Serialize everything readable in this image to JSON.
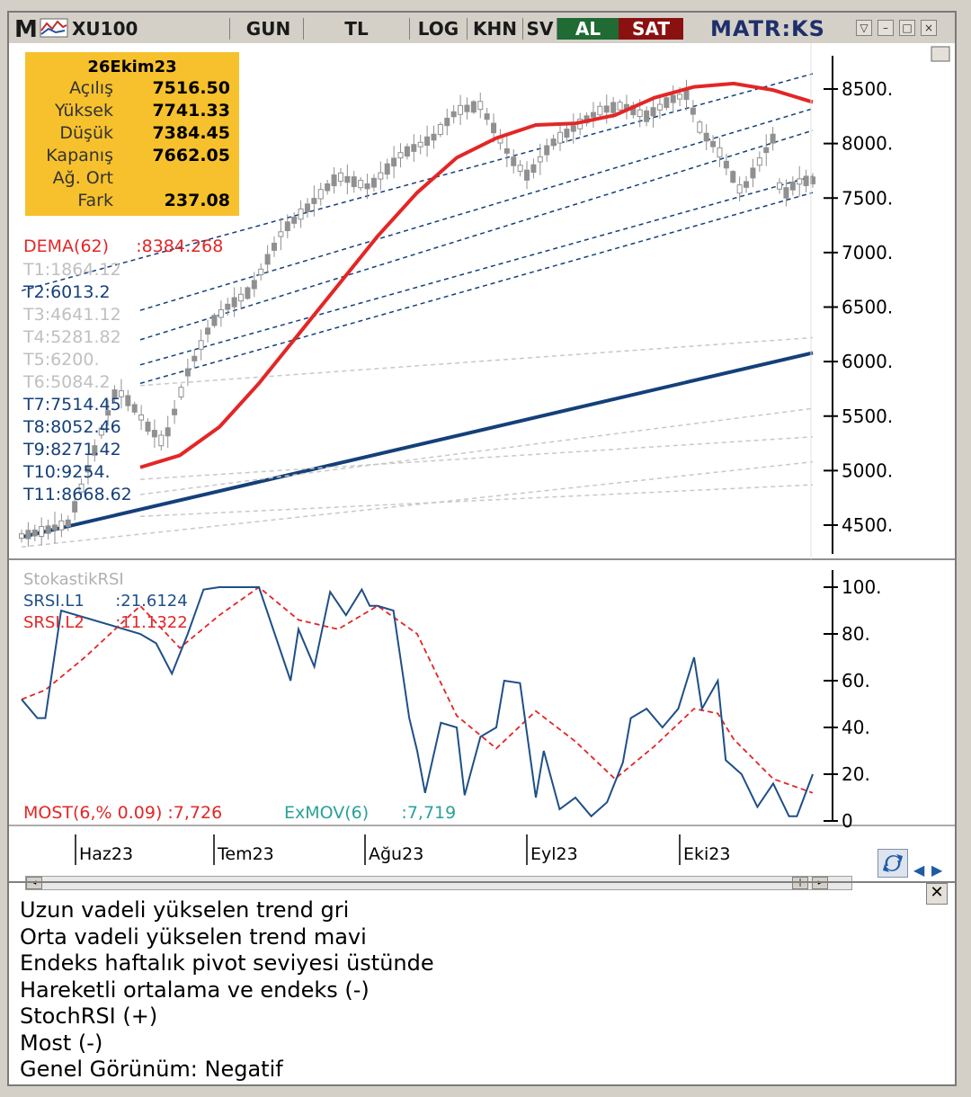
{
  "toolbar": {
    "logo": "M",
    "symbol": "XU100",
    "buttons": [
      "GUN",
      "TL",
      "LOG",
      "KHN",
      "SV"
    ],
    "al": "AL",
    "sat": "SAT",
    "brand": "MATR:KS"
  },
  "info_box": {
    "date": "26Ekim23",
    "rows": [
      {
        "label": "Açılış",
        "value": "7516.50"
      },
      {
        "label": "Yüksek",
        "value": "7741.33"
      },
      {
        "label": "Düşük",
        "value": "7384.45"
      },
      {
        "label": "Kapanış",
        "value": "7662.05"
      },
      {
        "label": "Ağ. Ort",
        "value": ""
      },
      {
        "label": "Fark",
        "value": "237.08"
      }
    ]
  },
  "colors": {
    "dema": "#e32626",
    "trend_dark": "#14407a",
    "trend_light": "#c8c8c8",
    "candle": "#909090",
    "info_bg": "#f6c12c",
    "srsi_l1": "#1f4f87",
    "srsi_l2": "#e32626",
    "exmov": "#2aa198"
  },
  "legend": {
    "dema": "DEMA(62)     :8384.268",
    "trends": [
      {
        "text": "T1:1864.12",
        "color": "#c0c0c0"
      },
      {
        "text": "T2:6013.2",
        "color": "#14407a"
      },
      {
        "text": "T3:4641.12",
        "color": "#c0c0c0"
      },
      {
        "text": "T4:5281.82",
        "color": "#c0c0c0"
      },
      {
        "text": "T5:6200.",
        "color": "#c0c0c0"
      },
      {
        "text": "T6:5084.2",
        "color": "#c0c0c0"
      },
      {
        "text": "T7:7514.45",
        "color": "#14407a"
      },
      {
        "text": "T8:8052.46",
        "color": "#14407a"
      },
      {
        "text": "T9:8271.42",
        "color": "#14407a"
      },
      {
        "text": "T10:9254.",
        "color": "#14407a"
      },
      {
        "text": "T11:8668.62",
        "color": "#14407a"
      }
    ]
  },
  "lower_legend": {
    "title": "StokastikRSI",
    "l1": "SRSI.L1      :21.6124",
    "l2": "SRSI.L2      :11.1322",
    "most": "MOST(6,% 0.09) :7,726",
    "exmov": "ExMOV(6)      :7,719"
  },
  "x_labels": [
    "Haz23",
    "Tem23",
    "Ağu23",
    "Eyl23",
    "Eki23"
  ],
  "comments": [
    "Uzun vadeli yükselen trend gri",
    "Orta vadeli yükselen trend mavi",
    "Endeks haftalık pivot seviyesi üstünde",
    "Hareketli ortalama ve endeks (-)",
    "StochRSI (+)",
    "Most (-)",
    "Genel Görünüm: Negatif"
  ],
  "chart_data": [
    {
      "type": "line",
      "title": "XU100",
      "y_ticks": [
        "8500.",
        "8000.",
        "7500.",
        "7000.",
        "6500.",
        "6000.",
        "5500.",
        "5000.",
        "4500."
      ],
      "ylim": [
        4200,
        8750
      ],
      "x_range": [
        0,
        100
      ],
      "series": [
        {
          "name": "DEMA(62)",
          "x": [
            15,
            20,
            25,
            30,
            35,
            40,
            45,
            50,
            55,
            60,
            65,
            70,
            75,
            80,
            85,
            90,
            95,
            100
          ],
          "values": [
            5030,
            5140,
            5400,
            5800,
            6250,
            6700,
            7150,
            7550,
            7870,
            8050,
            8170,
            8185,
            8260,
            8420,
            8520,
            8550,
            8490,
            8380
          ]
        }
      ],
      "price_approx": {
        "x": [
          0,
          3,
          6,
          12,
          14,
          16,
          18,
          21,
          24,
          26,
          29,
          33,
          36,
          40,
          44,
          48,
          52,
          55,
          58,
          62,
          64,
          67,
          70,
          73,
          76,
          79,
          82,
          84,
          86,
          88,
          91,
          93,
          95,
          96,
          98,
          100
        ],
        "values": [
          4400,
          4450,
          4520,
          5750,
          5600,
          5400,
          5250,
          5900,
          6350,
          6500,
          6650,
          7200,
          7400,
          7700,
          7600,
          7900,
          8050,
          8300,
          8350,
          7850,
          7700,
          8000,
          8150,
          8300,
          8350,
          8250,
          8400,
          8450,
          8100,
          7950,
          7550,
          7800,
          8050,
          7500,
          7650,
          7662
        ]
      },
      "trendlines": [
        {
          "name": "T2",
          "style": "solid",
          "from": [
            0,
            4390
          ],
          "to": [
            100,
            6080
          ]
        },
        {
          "name": "T7",
          "style": "dashed",
          "from": [
            0,
            6650
          ],
          "to": [
            100,
            8640
          ]
        },
        {
          "name": "T8",
          "style": "dashed",
          "from": [
            15,
            6470
          ],
          "to": [
            100,
            8320
          ]
        },
        {
          "name": "T9",
          "style": "dashed",
          "from": [
            15,
            6200
          ],
          "to": [
            100,
            8120
          ]
        },
        {
          "name": "T10",
          "style": "dashed",
          "from": [
            15,
            5970
          ],
          "to": [
            100,
            7700
          ]
        },
        {
          "name": "T11",
          "style": "dashed",
          "from": [
            15,
            5800
          ],
          "to": [
            100,
            7550
          ]
        },
        {
          "name": "T1",
          "style": "light",
          "from": [
            15,
            5780
          ],
          "to": [
            100,
            6220
          ]
        },
        {
          "name": "T3",
          "style": "light",
          "from": [
            0,
            4300
          ],
          "to": [
            100,
            5080
          ]
        },
        {
          "name": "T4",
          "style": "light",
          "from": [
            15,
            4920
          ],
          "to": [
            100,
            5310
          ]
        },
        {
          "name": "T5",
          "style": "light",
          "from": [
            15,
            4780
          ],
          "to": [
            100,
            5570
          ]
        },
        {
          "name": "T6",
          "style": "light",
          "from": [
            15,
            4580
          ],
          "to": [
            100,
            4870
          ]
        }
      ]
    },
    {
      "type": "line",
      "title": "StokastikRSI",
      "y_ticks": [
        "100.",
        "80.",
        "60.",
        "40.",
        "20.",
        "0"
      ],
      "ylim": [
        0,
        100
      ],
      "x_range": [
        0,
        100
      ],
      "series": [
        {
          "name": "SRSI.L1",
          "x": [
            0,
            2,
            3,
            5,
            15,
            17,
            19,
            21,
            23,
            25,
            28,
            30,
            34,
            35,
            37,
            39,
            41,
            43,
            44,
            45,
            47,
            49,
            50,
            51,
            53,
            55,
            56,
            58,
            60,
            61,
            63,
            65,
            66,
            68,
            70,
            72,
            74,
            76,
            77,
            79,
            81,
            83,
            85,
            86,
            88,
            89,
            91,
            93,
            95,
            97,
            98,
            100
          ],
          "values": [
            52,
            44,
            44,
            90,
            80,
            76,
            63,
            80,
            99,
            100,
            100,
            100,
            60,
            82,
            66,
            98,
            88,
            99,
            92,
            92,
            90,
            44,
            30,
            12,
            42,
            40,
            11,
            36,
            40,
            60,
            59,
            10,
            30,
            5,
            10,
            2,
            8,
            25,
            44,
            48,
            40,
            48,
            70,
            48,
            60,
            26,
            20,
            6,
            16,
            2,
            2,
            20
          ]
        },
        {
          "name": "SRSI.L2",
          "x": [
            0,
            3,
            8,
            15,
            20,
            25,
            30,
            35,
            40,
            45,
            50,
            55,
            60,
            65,
            70,
            75,
            80,
            85,
            88,
            90,
            95,
            100
          ],
          "values": [
            52,
            56,
            70,
            92,
            74,
            88,
            100,
            86,
            82,
            92,
            80,
            45,
            31,
            47,
            34,
            18,
            32,
            48,
            46,
            35,
            18,
            12
          ]
        }
      ]
    }
  ]
}
